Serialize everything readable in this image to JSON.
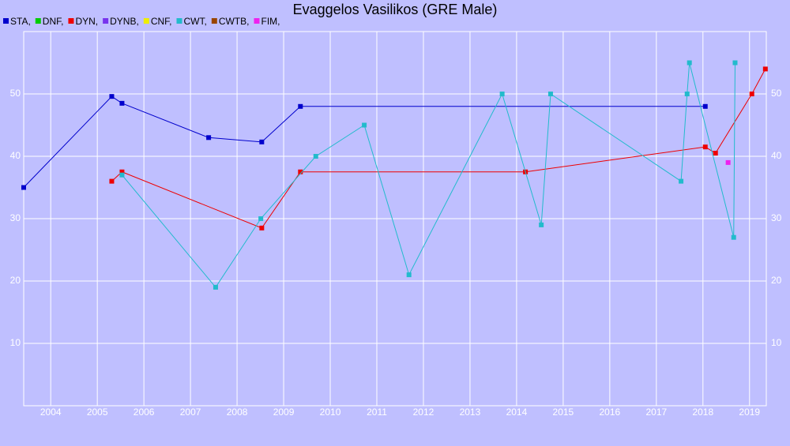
{
  "chart_data": {
    "type": "line",
    "title": "Evaggelos Vasilikos (GRE Male)",
    "series": [
      {
        "name": "STA,",
        "color": "#0000cc",
        "x": [
          2003.42,
          2005.31,
          2005.53,
          2007.39,
          2008.53,
          2009.36,
          2018.05
        ],
        "values": [
          35,
          49.6,
          48.5,
          43,
          42.3,
          48,
          48
        ]
      },
      {
        "name": "DNF,",
        "color": "#00cc00",
        "x": [],
        "values": []
      },
      {
        "name": "DYN,",
        "color": "#ee0000",
        "x": [
          2005.31,
          2005.53,
          2008.53,
          2009.36,
          2014.19,
          2018.05,
          2018.27,
          2019.05,
          2019.34
        ],
        "values": [
          36,
          37.5,
          28.5,
          37.5,
          37.5,
          41.5,
          40.5,
          50,
          54
        ]
      },
      {
        "name": "DYNB,",
        "color": "#7733ee",
        "x": [],
        "values": []
      },
      {
        "name": "CNF,",
        "color": "#eeee00",
        "x": [],
        "values": []
      },
      {
        "name": "CWT,",
        "color": "#22bbcc",
        "x": [
          2005.53,
          2007.54,
          2008.51,
          2009.69,
          2010.73,
          2011.69,
          2013.69,
          2014.53,
          2014.73,
          2017.53,
          2017.66,
          2017.71,
          2018.66,
          2018.69
        ],
        "values": [
          37,
          19,
          30,
          40,
          45,
          21,
          50,
          29,
          50,
          36,
          50,
          55,
          27,
          55
        ]
      },
      {
        "name": "CWTB,",
        "color": "#994400",
        "x": [],
        "values": []
      },
      {
        "name": "FIM,",
        "color": "#ee22ee",
        "x": [
          2018.54
        ],
        "values": [
          39
        ]
      }
    ],
    "xlim": [
      2003.42,
      2019.36
    ],
    "xticks": [
      2004,
      2005,
      2006,
      2007,
      2008,
      2009,
      2010,
      2011,
      2012,
      2013,
      2014,
      2015,
      2016,
      2017,
      2018,
      2019
    ],
    "ylim": [
      0,
      60
    ],
    "yticks": [
      10,
      20,
      30,
      40,
      50
    ],
    "grid": true
  }
}
